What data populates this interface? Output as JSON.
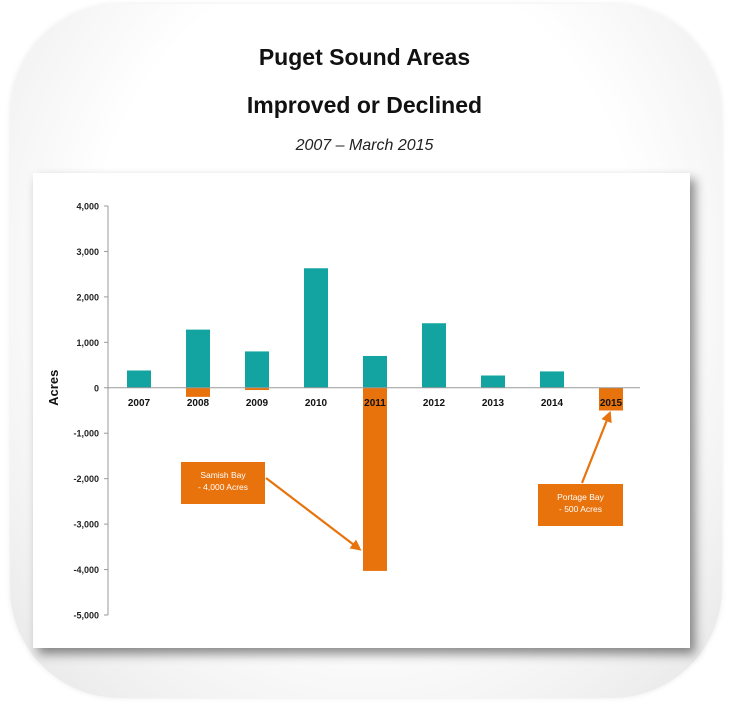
{
  "header": {
    "title_line1": "Puget Sound Areas",
    "title_line2": "Improved or Declined",
    "subtitle": "2007 – March 2015"
  },
  "colors": {
    "improved": "#13a3a0",
    "declined": "#e8720c",
    "axis": "#9a9a9a"
  },
  "chart_data": {
    "type": "bar",
    "ylabel": "Acres",
    "ylim": [
      -5000,
      4000
    ],
    "yticks": [
      4000,
      3000,
      2000,
      1000,
      0,
      -1000,
      -2000,
      -3000,
      -4000,
      -5000
    ],
    "ytick_labels": [
      "4,000",
      "3,000",
      "2,000",
      "1,000",
      "0",
      "-1,000",
      "-2,000",
      "-3,000",
      "-4,000",
      "-5,000"
    ],
    "categories": [
      "2007",
      "2008",
      "2009",
      "2010",
      "2011",
      "2012",
      "2013",
      "2014",
      "2015"
    ],
    "series": [
      {
        "key": "improved",
        "values": [
          380,
          1280,
          800,
          2630,
          700,
          1420,
          270,
          360,
          0
        ]
      },
      {
        "key": "declined",
        "values": [
          0,
          -200,
          -50,
          0,
          -4030,
          0,
          0,
          0,
          -500
        ]
      }
    ],
    "annotations": [
      {
        "lines": [
          "Samish Bay",
          "- 4,000 Acres"
        ],
        "target": "2011"
      },
      {
        "lines": [
          "Portage Bay",
          "- 500 Acres"
        ],
        "target": "2015"
      }
    ],
    "grid": false,
    "legend": "none"
  }
}
